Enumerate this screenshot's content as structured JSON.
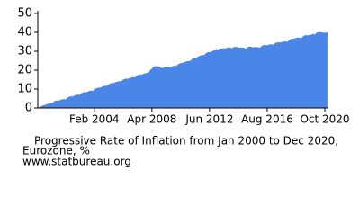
{
  "chart_data": {
    "type": "area",
    "title": [
      "Progressive Rate of Inflation from Jan 2000 to Dec 2020,",
      "Eurozone, %"
    ],
    "source": "www.statbureau.org",
    "color": "#4a86e8",
    "ylim": [
      0,
      50
    ],
    "yticks": [
      0,
      10,
      20,
      30,
      40,
      50
    ],
    "categories": [
      null,
      null,
      null,
      null,
      null,
      null,
      null,
      null,
      null,
      null,
      null,
      null,
      null,
      null,
      null,
      null,
      null,
      null,
      null,
      null,
      null,
      null,
      null,
      null,
      null,
      null,
      null,
      null,
      null,
      null,
      null,
      null,
      null,
      null,
      null,
      null,
      null,
      null,
      null,
      null,
      null,
      null,
      null,
      null,
      null,
      null,
      null,
      null,
      null,
      "Feb 2004",
      null,
      null,
      null,
      null,
      null,
      null,
      null,
      null,
      null,
      null,
      null,
      null,
      null,
      null,
      null,
      null,
      null,
      null,
      null,
      null,
      null,
      null,
      null,
      null,
      null,
      null,
      null,
      null,
      null,
      null,
      null,
      null,
      null,
      null,
      null,
      null,
      null,
      null,
      null,
      null,
      null,
      null,
      null,
      null,
      null,
      null,
      null,
      null,
      null,
      "Apr 2008",
      null,
      null,
      null,
      null,
      null,
      null,
      null,
      null,
      null,
      null,
      null,
      null,
      null,
      null,
      null,
      null,
      null,
      null,
      null,
      null,
      null,
      null,
      null,
      null,
      null,
      null,
      null,
      null,
      null,
      null,
      null,
      null,
      null,
      null,
      null,
      null,
      null,
      null,
      null,
      null,
      null,
      null,
      null,
      null,
      null,
      null,
      null,
      null,
      null,
      "Jun 2012",
      null,
      null,
      null,
      null,
      null,
      null,
      null,
      null,
      null,
      null,
      null,
      null,
      null,
      null,
      null,
      null,
      null,
      null,
      null,
      null,
      null,
      null,
      null,
      null,
      null,
      null,
      null,
      null,
      null,
      null,
      null,
      null,
      null,
      null,
      null,
      null,
      null,
      null,
      null,
      null,
      null,
      null,
      null,
      null,
      null,
      null,
      null,
      null,
      null,
      "Aug 2016",
      null,
      null,
      null,
      null,
      null,
      null,
      null,
      null,
      null,
      null,
      null,
      null,
      null,
      null,
      null,
      null,
      null,
      null,
      null,
      null,
      null,
      null,
      null,
      null,
      null,
      null,
      null,
      null,
      null,
      null,
      null,
      null,
      null,
      null,
      null,
      null,
      null,
      null,
      null,
      null,
      null,
      null,
      null,
      null,
      null,
      null,
      null,
      null,
      null,
      "Oct 2020",
      null,
      null
    ],
    "values": [
      0,
      0.3,
      0.5,
      0.8,
      1.0,
      1.3,
      1.4,
      1.6,
      1.9,
      2.1,
      2.4,
      2.6,
      2.3,
      2.7,
      3.3,
      3.6,
      3.7,
      3.8,
      3.7,
      3.9,
      4.2,
      4.4,
      4.4,
      4.6,
      4.3,
      4.8,
      5.4,
      5.7,
      5.9,
      6.0,
      5.9,
      6.2,
      6.5,
      6.7,
      6.8,
      7.0,
      6.7,
      7.2,
      7.7,
      8.0,
      8.2,
      8.3,
      8.1,
      8.4,
      8.7,
      8.9,
      8.9,
      9.1,
      8.8,
      9.3,
      10.0,
      10.3,
      10.5,
      10.6,
      10.5,
      10.8,
      11.2,
      11.4,
      11.5,
      11.7,
      11.4,
      11.9,
      12.5,
      12.8,
      13.0,
      13.1,
      13.0,
      13.3,
      13.6,
      13.8,
      13.9,
      14.1,
      13.8,
      14.3,
      14.8,
      15.1,
      15.3,
      15.4,
      15.2,
      15.5,
      15.8,
      16.0,
      16.0,
      16.2,
      15.9,
      16.4,
      17.0,
      17.3,
      17.5,
      17.6,
      17.4,
      17.7,
      18.0,
      18.2,
      18.3,
      18.5,
      18.6,
      19.3,
      20.2,
      20.6,
      21.4,
      21.8,
      22.0,
      21.8,
      21.9,
      21.9,
      21.4,
      21.3,
      20.8,
      21.2,
      21.5,
      21.7,
      21.7,
      21.8,
      21.4,
      21.7,
      21.8,
      22.0,
      22.1,
      22.3,
      22.0,
      22.5,
      23.1,
      23.4,
      23.6,
      23.8,
      23.7,
      24.0,
      24.3,
      24.5,
      24.6,
      24.8,
      24.6,
      25.1,
      25.8,
      26.2,
      26.4,
      26.6,
      26.6,
      26.9,
      27.3,
      27.6,
      27.7,
      28.0,
      27.7,
      28.2,
      28.9,
      29.2,
      29.4,
      29.5,
      29.4,
      29.7,
      30.1,
      30.3,
      30.4,
      30.6,
      30.2,
      30.6,
      31.1,
      31.3,
      31.4,
      31.5,
      31.3,
      31.5,
      31.7,
      31.8,
      31.8,
      31.9,
      31.4,
      31.7,
      32.1,
      32.2,
      32.1,
      32.1,
      31.7,
      31.8,
      31.9,
      31.9,
      31.7,
      31.7,
      31.0,
      31.5,
      32.0,
      32.2,
      32.3,
      32.3,
      31.9,
      32.0,
      32.1,
      32.1,
      32.0,
      32.1,
      31.7,
      31.8,
      32.5,
      32.9,
      33.1,
      33.3,
      33.0,
      33.1,
      33.3,
      33.5,
      33.4,
      33.6,
      33.2,
      33.7,
      34.2,
      34.5,
      34.5,
      34.6,
      34.5,
      34.6,
      34.8,
      35.0,
      35.0,
      35.1,
      34.8,
      35.1,
      35.8,
      36.1,
      36.5,
      36.6,
      36.5,
      36.7,
      36.9,
      37.1,
      37.0,
      37.1,
      36.7,
      37.1,
      37.7,
      38.1,
      38.3,
      38.4,
      38.2,
      38.4,
      38.5,
      38.7,
      38.8,
      39.1,
      38.6,
      39.1,
      39.7,
      40.0,
      39.8,
      40.1,
      39.8,
      39.8,
      39.6,
      39.7,
      39.6,
      39.8
    ]
  }
}
